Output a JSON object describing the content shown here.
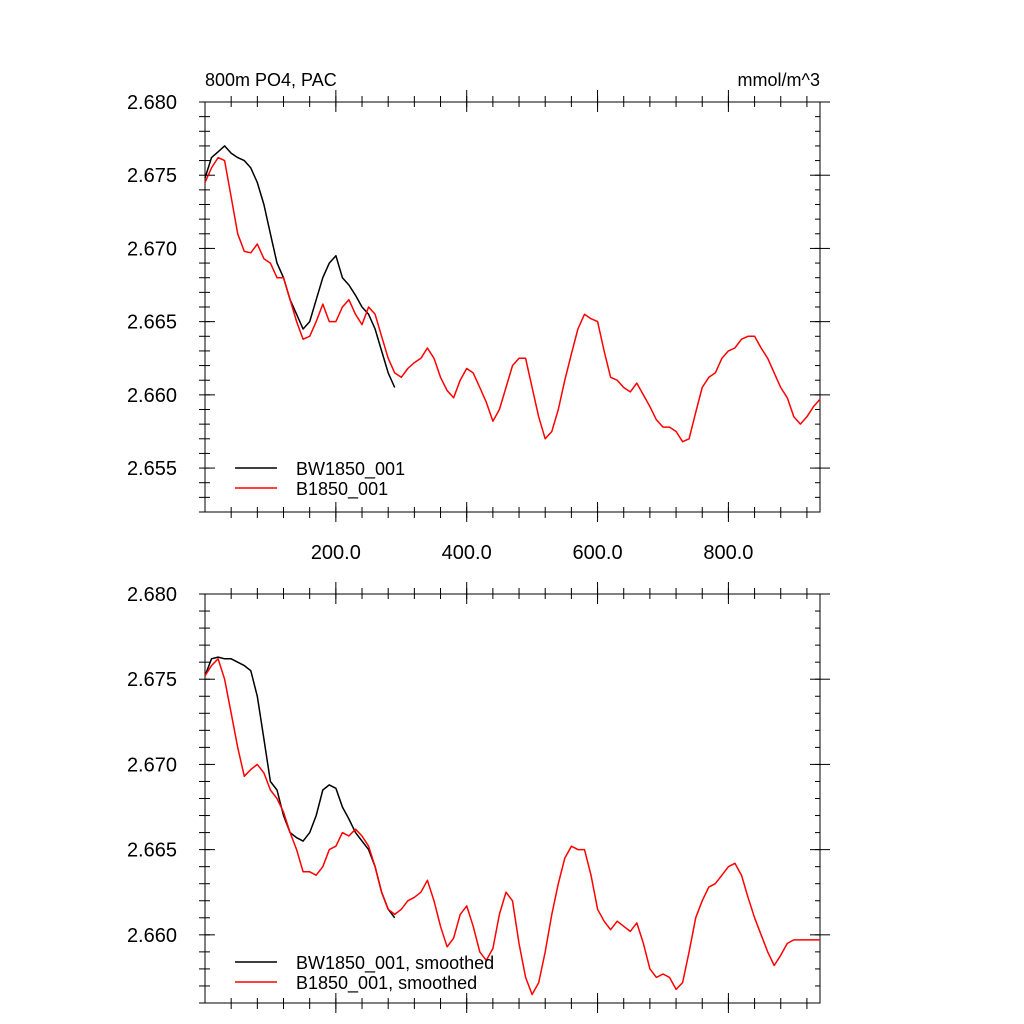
{
  "chart_data": [
    {
      "type": "line",
      "title": "800m PO4, PAC",
      "units": "mmol/m^3",
      "xlim": [
        0,
        940
      ],
      "ylim": [
        2.652,
        2.68
      ],
      "x_ticks": [
        200,
        400,
        600,
        800
      ],
      "x_tick_labels": [
        "200.0",
        "400.0",
        "600.0",
        "800.0"
      ],
      "y_ticks": [
        2.655,
        2.66,
        2.665,
        2.67,
        2.675,
        2.68
      ],
      "y_tick_labels": [
        "2.655",
        "2.660",
        "2.665",
        "2.670",
        "2.675",
        "2.680"
      ],
      "legend_placement": "bottom-left",
      "series": [
        {
          "name": "BW1850_001",
          "color": "#000000",
          "x": [
            0,
            10,
            20,
            30,
            40,
            50,
            60,
            70,
            80,
            90,
            100,
            110,
            120,
            130,
            140,
            150,
            160,
            170,
            180,
            190,
            200,
            210,
            220,
            230,
            240,
            250,
            260,
            270,
            280,
            290
          ],
          "y": [
            2.6748,
            2.6762,
            2.6766,
            2.677,
            2.6765,
            2.6762,
            2.676,
            2.6755,
            2.6745,
            2.673,
            2.671,
            2.669,
            2.668,
            2.6665,
            2.6655,
            2.6645,
            2.665,
            2.6665,
            2.668,
            2.669,
            2.6695,
            2.668,
            2.6675,
            2.6668,
            2.666,
            2.6655,
            2.6645,
            2.663,
            2.6615,
            2.6605
          ]
        },
        {
          "name": "B1850_001",
          "color": "#ff0000",
          "x": [
            0,
            10,
            20,
            30,
            40,
            50,
            60,
            70,
            80,
            90,
            100,
            110,
            120,
            130,
            140,
            150,
            160,
            170,
            180,
            190,
            200,
            210,
            220,
            230,
            240,
            250,
            260,
            270,
            280,
            290,
            300,
            310,
            320,
            330,
            340,
            350,
            360,
            370,
            380,
            390,
            400,
            410,
            420,
            430,
            440,
            450,
            460,
            470,
            480,
            490,
            500,
            510,
            520,
            530,
            540,
            550,
            560,
            570,
            580,
            590,
            600,
            610,
            620,
            630,
            640,
            650,
            660,
            670,
            680,
            690,
            700,
            710,
            720,
            730,
            740,
            750,
            760,
            770,
            780,
            790,
            800,
            810,
            820,
            830,
            840,
            850,
            860,
            870,
            880,
            890,
            900,
            910,
            920,
            930,
            940
          ],
          "y": [
            2.6745,
            2.6755,
            2.6762,
            2.676,
            2.6735,
            2.671,
            2.6698,
            2.6697,
            2.6703,
            2.6693,
            2.669,
            2.668,
            2.668,
            2.6665,
            2.665,
            2.6638,
            2.664,
            2.665,
            2.6662,
            2.665,
            2.665,
            2.666,
            2.6665,
            2.6655,
            2.6648,
            2.666,
            2.6655,
            2.664,
            2.6625,
            2.6615,
            2.6612,
            2.6618,
            2.6622,
            2.6625,
            2.6632,
            2.6625,
            2.6612,
            2.6603,
            2.6598,
            2.661,
            2.6618,
            2.6615,
            2.6605,
            2.6595,
            2.6582,
            2.659,
            2.6605,
            2.662,
            2.6625,
            2.6625,
            2.6605,
            2.6585,
            2.657,
            2.6575,
            2.659,
            2.661,
            2.6628,
            2.6645,
            2.6655,
            2.6652,
            2.665,
            2.663,
            2.6612,
            2.661,
            2.6605,
            2.6602,
            2.6608,
            2.66,
            2.6592,
            2.6583,
            2.6578,
            2.6578,
            2.6575,
            2.6568,
            2.657,
            2.6588,
            2.6605,
            2.6612,
            2.6615,
            2.6625,
            2.663,
            2.6632,
            2.6638,
            2.664,
            2.664,
            2.6632,
            2.6625,
            2.6615,
            2.6605,
            2.6598,
            2.6585,
            2.658,
            2.6585,
            2.6592,
            2.6597
          ]
        }
      ]
    },
    {
      "type": "line",
      "xlim": [
        0,
        940
      ],
      "ylim": [
        2.656,
        2.68
      ],
      "y_ticks": [
        2.66,
        2.665,
        2.67,
        2.675,
        2.68
      ],
      "y_tick_labels": [
        "2.660",
        "2.665",
        "2.670",
        "2.675",
        "2.680"
      ],
      "legend_placement": "bottom-left",
      "series": [
        {
          "name": "BW1850_001, smoothed",
          "color": "#000000",
          "x": [
            0,
            10,
            20,
            30,
            40,
            50,
            60,
            70,
            80,
            90,
            100,
            110,
            120,
            130,
            140,
            150,
            160,
            170,
            180,
            190,
            200,
            210,
            220,
            230,
            240,
            250,
            260,
            270,
            280,
            290
          ],
          "y": [
            2.6752,
            2.6762,
            2.6763,
            2.6762,
            2.6762,
            2.676,
            2.6758,
            2.6755,
            2.674,
            2.6715,
            2.669,
            2.6685,
            2.667,
            2.666,
            2.6657,
            2.6655,
            2.666,
            2.667,
            2.6685,
            2.6688,
            2.6686,
            2.6675,
            2.6668,
            2.666,
            2.6655,
            2.665,
            2.664,
            2.6625,
            2.6615,
            2.661
          ]
        },
        {
          "name": "B1850_001, smoothed",
          "color": "#ff0000",
          "x": [
            0,
            10,
            20,
            30,
            40,
            50,
            60,
            70,
            80,
            90,
            100,
            110,
            120,
            130,
            140,
            150,
            160,
            170,
            180,
            190,
            200,
            210,
            220,
            230,
            240,
            250,
            260,
            270,
            280,
            290,
            300,
            310,
            320,
            330,
            340,
            350,
            360,
            370,
            380,
            390,
            400,
            410,
            420,
            430,
            440,
            450,
            460,
            470,
            480,
            490,
            500,
            510,
            520,
            530,
            540,
            550,
            560,
            570,
            580,
            590,
            600,
            610,
            620,
            630,
            640,
            650,
            660,
            670,
            680,
            690,
            700,
            710,
            720,
            730,
            740,
            750,
            760,
            770,
            780,
            790,
            800,
            810,
            820,
            830,
            840,
            850,
            860,
            870,
            880,
            890,
            900,
            910,
            920,
            930,
            940
          ],
          "y": [
            2.6752,
            2.6758,
            2.6762,
            2.675,
            2.673,
            2.671,
            2.6693,
            2.6697,
            2.67,
            2.6695,
            2.6685,
            2.668,
            2.6672,
            2.666,
            2.665,
            2.6637,
            2.6637,
            2.6635,
            2.664,
            2.665,
            2.6652,
            2.666,
            2.6658,
            2.6662,
            2.6658,
            2.6652,
            2.664,
            2.6625,
            2.6615,
            2.6612,
            2.6615,
            2.662,
            2.6622,
            2.6625,
            2.6632,
            2.662,
            2.6605,
            2.6593,
            2.6598,
            2.6612,
            2.6617,
            2.6605,
            2.659,
            2.6585,
            2.6592,
            2.6612,
            2.6625,
            2.662,
            2.6595,
            2.6575,
            2.6565,
            2.6572,
            2.659,
            2.6612,
            2.663,
            2.6645,
            2.6652,
            2.665,
            2.665,
            2.6635,
            2.6615,
            2.6608,
            2.6603,
            2.6608,
            2.6605,
            2.6602,
            2.6607,
            2.6595,
            2.658,
            2.6575,
            2.6577,
            2.6575,
            2.6568,
            2.6572,
            2.659,
            2.661,
            2.662,
            2.6628,
            2.663,
            2.6635,
            2.664,
            2.6642,
            2.6635,
            2.6622,
            2.661,
            2.66,
            2.659,
            2.6582,
            2.6588,
            2.6595,
            2.6597,
            2.6597,
            2.6597,
            2.6597,
            2.6597
          ]
        }
      ]
    }
  ]
}
